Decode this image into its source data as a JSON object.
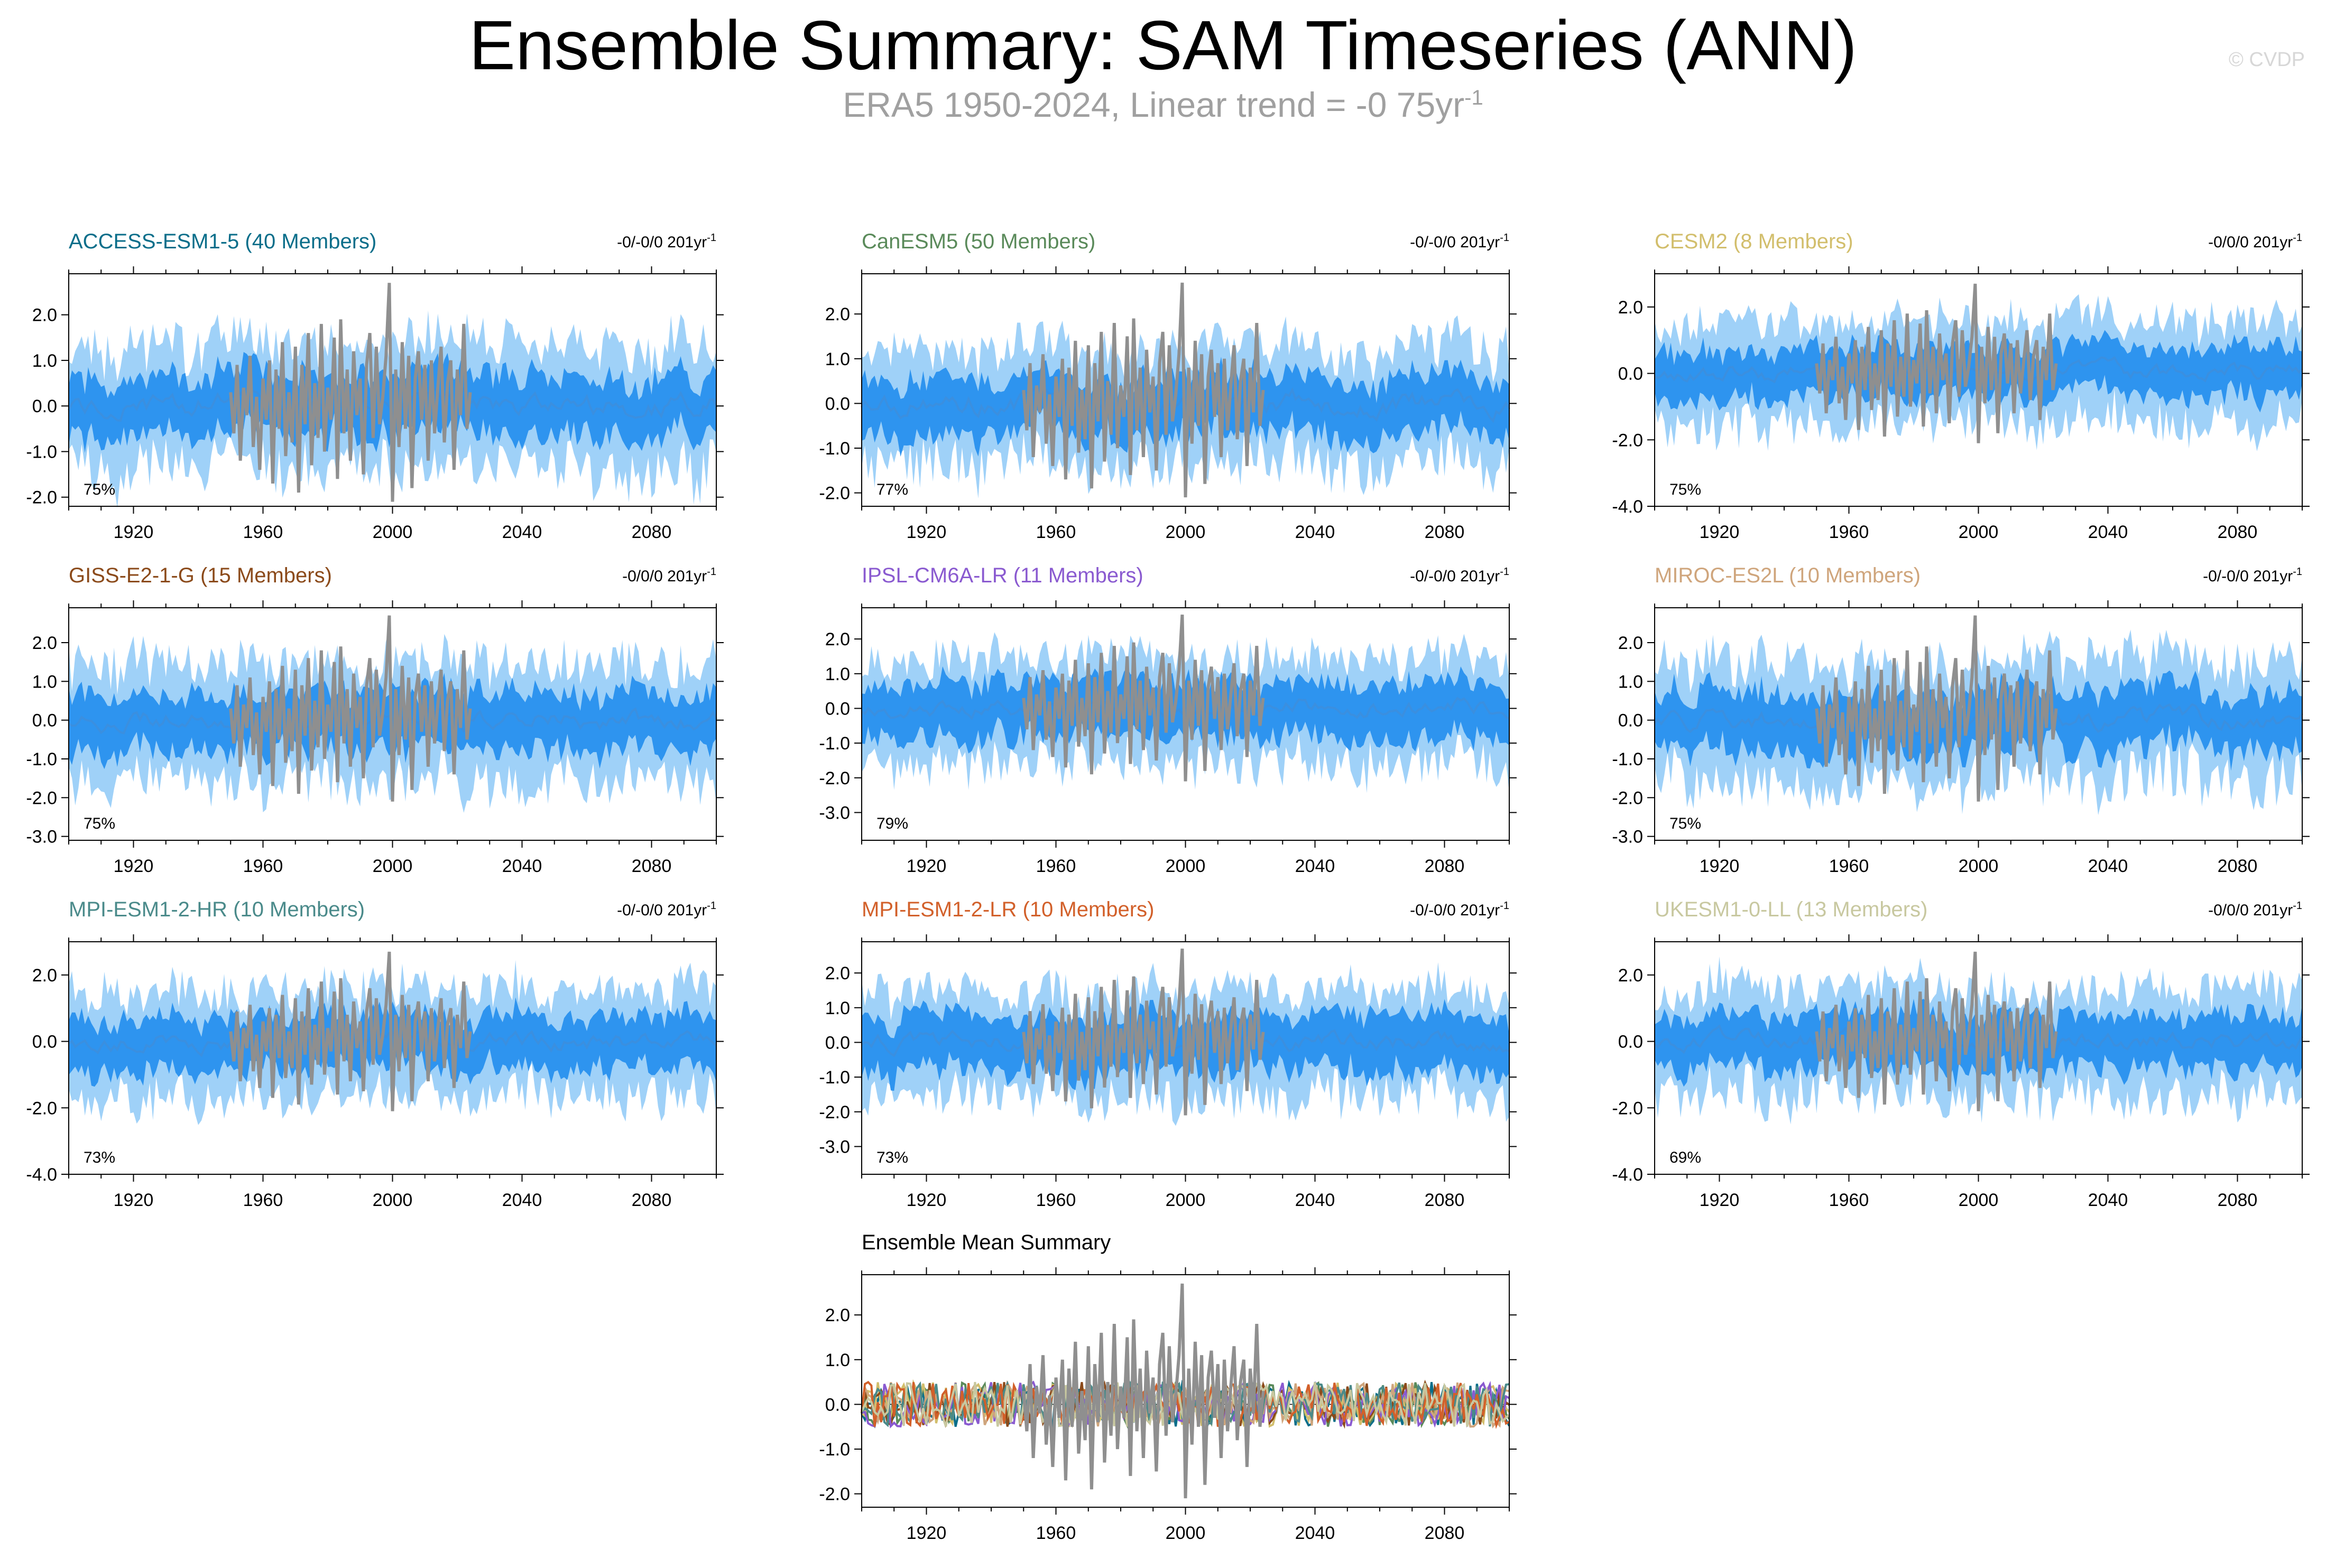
{
  "title": "Ensemble Summary: SAM Timeseries (ANN)",
  "subtitle_main": "ERA5 1950-2024, Linear trend = -0 75yr",
  "subtitle_sup": "-1",
  "watermark": "© CVDP",
  "colors": {
    "outer_band": "#9fd1f8",
    "inner_band": "#2e94ef",
    "ensemble_mean": "#3a8fe0",
    "observation": "#8f8f8f"
  },
  "chart_data": [
    {
      "type": "area",
      "model": "ACCESS-ESM1-5",
      "members": 40,
      "title": "ACCESS-ESM1-5 (40 Members)",
      "title_color": "#0a6e8a",
      "trend_text": "-0/-0/0 201yr",
      "trend_sup": "-1",
      "pct_label": "75%",
      "x_range": [
        1900,
        2100
      ],
      "xticks": [
        1920,
        1960,
        2000,
        2040,
        2080
      ],
      "ylim": [
        -2.2,
        2.9
      ],
      "yticks": [
        2.0,
        1.0,
        0.0,
        -1.0,
        -2.0
      ],
      "ytick_labels": [
        "2.0",
        "1.0",
        "0.0",
        "-1.0",
        "-2.0"
      ],
      "outer_halfwidth": 1.3,
      "inner_halfwidth": 0.62,
      "seed": 11
    },
    {
      "type": "area",
      "model": "CanESM5",
      "members": 50,
      "title": "CanESM5 (50 Members)",
      "title_color": "#5a8a5a",
      "trend_text": "-0/-0/0 201yr",
      "trend_sup": "-1",
      "pct_label": "77%",
      "x_range": [
        1900,
        2100
      ],
      "xticks": [
        1920,
        1960,
        2000,
        2040,
        2080
      ],
      "ylim": [
        -2.3,
        2.9
      ],
      "yticks": [
        2.0,
        1.0,
        0.0,
        -1.0,
        -2.0
      ],
      "ytick_labels": [
        "2.0",
        "1.0",
        "0.0",
        "-1.0",
        "-2.0"
      ],
      "outer_halfwidth": 1.25,
      "inner_halfwidth": 0.6,
      "seed": 23
    },
    {
      "type": "area",
      "model": "CESM2",
      "members": 8,
      "title": "CESM2 (8 Members)",
      "title_color": "#d2be6c",
      "trend_text": "-0/0/0 201yr",
      "trend_sup": "-1",
      "pct_label": "75%",
      "x_range": [
        1900,
        2100
      ],
      "xticks": [
        1920,
        1960,
        2000,
        2040,
        2080
      ],
      "ylim": [
        -4.0,
        3.0
      ],
      "yticks": [
        2.0,
        0.0,
        -2.0,
        -4.0
      ],
      "ytick_labels": [
        "2.0",
        "0.0",
        "-2.0",
        "-4.0"
      ],
      "outer_halfwidth": 1.5,
      "inner_halfwidth": 0.7,
      "seed": 37
    },
    {
      "type": "area",
      "model": "GISS-E2-1-G",
      "members": 15,
      "title": "GISS-E2-1-G (15 Members)",
      "title_color": "#8b4a1a",
      "trend_text": "-0/0/0 201yr",
      "trend_sup": "-1",
      "pct_label": "75%",
      "x_range": [
        1900,
        2100
      ],
      "xticks": [
        1920,
        1960,
        2000,
        2040,
        2080
      ],
      "ylim": [
        -3.1,
        2.9
      ],
      "yticks": [
        2.0,
        1.0,
        0.0,
        -1.0,
        -2.0,
        -3.0
      ],
      "ytick_labels": [
        "2.0",
        "1.0",
        "0.0",
        "-1.0",
        "-2.0",
        "-3.0"
      ],
      "outer_halfwidth": 1.45,
      "inner_halfwidth": 0.7,
      "seed": 41
    },
    {
      "type": "area",
      "model": "IPSL-CM6A-LR",
      "members": 11,
      "title": "IPSL-CM6A-LR (11 Members)",
      "title_color": "#8a5ad0",
      "trend_text": "-0/-0/0 201yr",
      "trend_sup": "-1",
      "pct_label": "79%",
      "x_range": [
        1900,
        2100
      ],
      "xticks": [
        1920,
        1960,
        2000,
        2040,
        2080
      ],
      "ylim": [
        -3.8,
        2.9
      ],
      "yticks": [
        2.0,
        1.0,
        0.0,
        -1.0,
        -2.0,
        -3.0
      ],
      "ytick_labels": [
        "2.0",
        "1.0",
        "0.0",
        "-1.0",
        "-2.0",
        "-3.0"
      ],
      "outer_halfwidth": 1.5,
      "inner_halfwidth": 0.75,
      "seed": 53
    },
    {
      "type": "area",
      "model": "MIROC-ES2L",
      "members": 10,
      "title": "MIROC-ES2L (10 Members)",
      "title_color": "#cfa57c",
      "trend_text": "-0/-0/0 201yr",
      "trend_sup": "-1",
      "pct_label": "75%",
      "x_range": [
        1900,
        2100
      ],
      "xticks": [
        1920,
        1960,
        2000,
        2040,
        2080
      ],
      "ylim": [
        -3.1,
        2.9
      ],
      "yticks": [
        2.0,
        1.0,
        0.0,
        -1.0,
        -2.0,
        -3.0
      ],
      "ytick_labels": [
        "2.0",
        "1.0",
        "0.0",
        "-1.0",
        "-2.0",
        "-3.0"
      ],
      "outer_halfwidth": 1.5,
      "inner_halfwidth": 0.72,
      "seed": 67
    },
    {
      "type": "area",
      "model": "MPI-ESM1-2-HR",
      "members": 10,
      "title": "MPI-ESM1-2-HR (10 Members)",
      "title_color": "#4a8a8a",
      "trend_text": "-0/-0/0 201yr",
      "trend_sup": "-1",
      "pct_label": "73%",
      "x_range": [
        1900,
        2100
      ],
      "xticks": [
        1920,
        1960,
        2000,
        2040,
        2080
      ],
      "ylim": [
        -4.0,
        3.0
      ],
      "yticks": [
        2.0,
        0.0,
        -2.0,
        -4.0
      ],
      "ytick_labels": [
        "2.0",
        "0.0",
        "-2.0",
        "-4.0"
      ],
      "outer_halfwidth": 1.55,
      "inner_halfwidth": 0.75,
      "seed": 71
    },
    {
      "type": "area",
      "model": "MPI-ESM1-2-LR",
      "members": 10,
      "title": "MPI-ESM1-2-LR (10 Members)",
      "title_color": "#d2602a",
      "trend_text": "-0/-0/0 201yr",
      "trend_sup": "-1",
      "pct_label": "73%",
      "x_range": [
        1900,
        2100
      ],
      "xticks": [
        1920,
        1960,
        2000,
        2040,
        2080
      ],
      "ylim": [
        -3.8,
        2.9
      ],
      "yticks": [
        2.0,
        1.0,
        0.0,
        -1.0,
        -2.0,
        -3.0
      ],
      "ytick_labels": [
        "2.0",
        "1.0",
        "0.0",
        "-1.0",
        "-2.0",
        "-3.0"
      ],
      "outer_halfwidth": 1.5,
      "inner_halfwidth": 0.75,
      "seed": 83
    },
    {
      "type": "area",
      "model": "UKESM1-0-LL",
      "members": 13,
      "title": "UKESM1-0-LL (13 Members)",
      "title_color": "#c8c8a0",
      "trend_text": "-0/0/0 201yr",
      "trend_sup": "-1",
      "pct_label": "69%",
      "x_range": [
        1900,
        2100
      ],
      "xticks": [
        1920,
        1960,
        2000,
        2040,
        2080
      ],
      "ylim": [
        -4.0,
        3.0
      ],
      "yticks": [
        2.0,
        0.0,
        -2.0,
        -4.0
      ],
      "ytick_labels": [
        "2.0",
        "0.0",
        "-2.0",
        "-4.0"
      ],
      "outer_halfwidth": 1.55,
      "inner_halfwidth": 0.75,
      "seed": 97
    },
    {
      "type": "line",
      "model": "Ensemble Mean Summary",
      "title": "Ensemble Mean Summary",
      "title_color": "#000000",
      "x_range": [
        1900,
        2100
      ],
      "xticks": [
        1920,
        1960,
        2000,
        2040,
        2080
      ],
      "ylim": [
        -2.3,
        2.9
      ],
      "yticks": [
        2.0,
        1.0,
        0.0,
        -1.0,
        -2.0
      ],
      "ytick_labels": [
        "2.0",
        "1.0",
        "0.0",
        "-1.0",
        "-2.0"
      ],
      "series_colors": [
        "#0a6e8a",
        "#5a8a5a",
        "#d2be6c",
        "#8b4a1a",
        "#8a5ad0",
        "#cfa57c",
        "#4a8a8a",
        "#d2602a",
        "#c8c8a0"
      ],
      "seed": 131
    }
  ],
  "observations": {
    "name": "ERA5",
    "years": [
      1950,
      1951,
      1952,
      1953,
      1954,
      1955,
      1956,
      1957,
      1958,
      1959,
      1960,
      1961,
      1962,
      1963,
      1964,
      1965,
      1966,
      1967,
      1968,
      1969,
      1970,
      1971,
      1972,
      1973,
      1974,
      1975,
      1976,
      1977,
      1978,
      1979,
      1980,
      1981,
      1982,
      1983,
      1984,
      1985,
      1986,
      1987,
      1988,
      1989,
      1990,
      1991,
      1992,
      1993,
      1994,
      1995,
      1996,
      1997,
      1998,
      1999,
      2000,
      2001,
      2002,
      2003,
      2004,
      2005,
      2006,
      2007,
      2008,
      2009,
      2010,
      2011,
      2012,
      2013,
      2014,
      2015,
      2016,
      2017,
      2018,
      2019,
      2020,
      2021,
      2022,
      2023,
      2024
    ],
    "values": [
      0.3,
      -0.6,
      0.9,
      -1.2,
      0.4,
      -0.2,
      1.1,
      -0.9,
      0.2,
      -1.4,
      0.6,
      -0.3,
      1.0,
      -1.7,
      0.8,
      -0.5,
      1.4,
      -1.1,
      0.3,
      -0.8,
      1.3,
      -1.9,
      0.9,
      -0.4,
      1.6,
      -1.3,
      0.5,
      -0.7,
      1.8,
      -1.0,
      0.4,
      -0.3,
      1.5,
      -1.6,
      1.9,
      -0.6,
      0.8,
      -1.2,
      1.2,
      -0.2,
      0.6,
      -1.5,
      0.9,
      1.6,
      -0.7,
      1.3,
      -0.4,
      0.2,
      1.1,
      2.7,
      -2.1,
      0.8,
      -0.9,
      1.4,
      -0.5,
      1.1,
      -1.8,
      0.6,
      1.2,
      -0.3,
      0.9,
      -1.2,
      1.0,
      -0.6,
      0.4,
      1.3,
      -0.8,
      0.5,
      1.0,
      -1.4,
      0.8,
      -0.2,
      1.8,
      -0.5,
      0.3
    ]
  }
}
